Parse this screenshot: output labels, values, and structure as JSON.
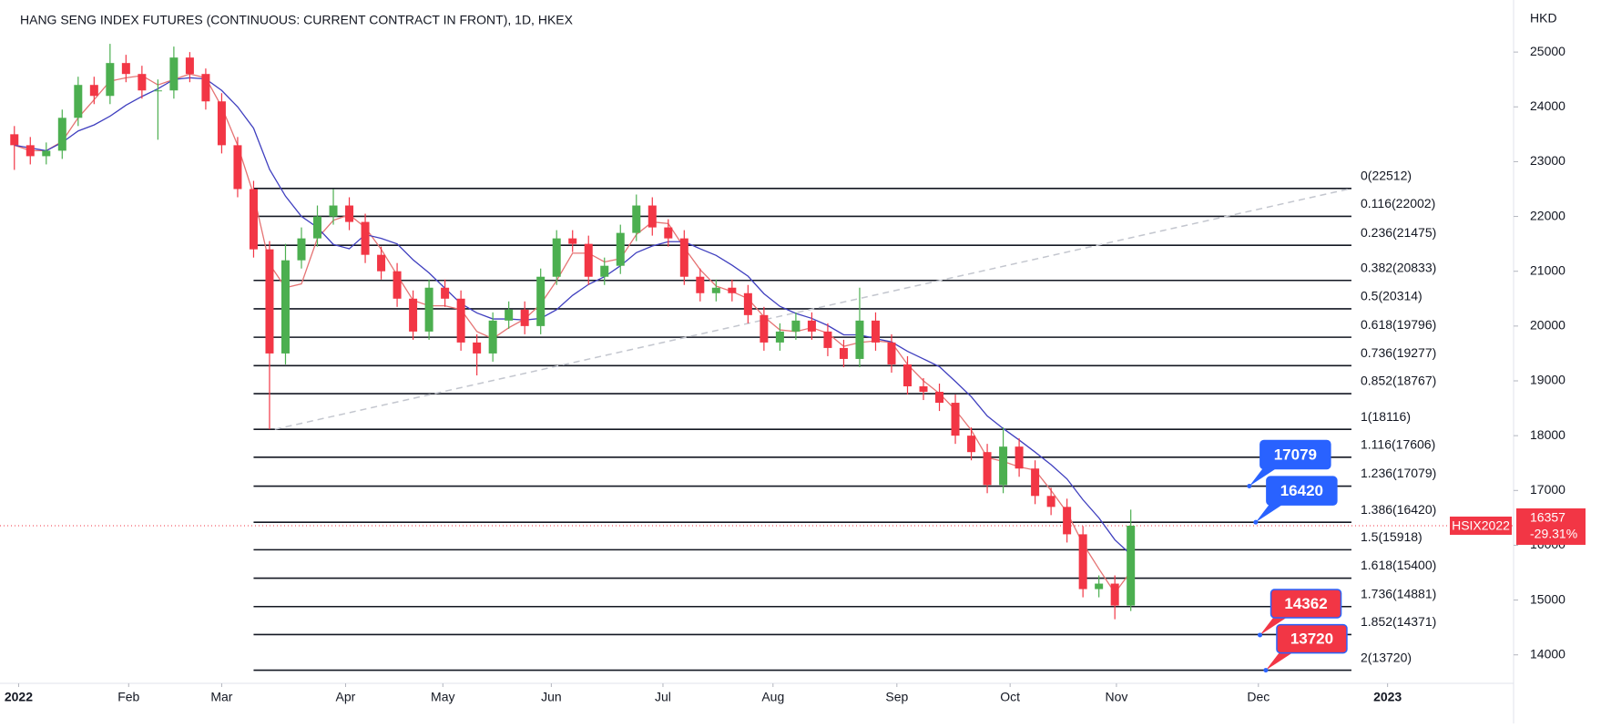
{
  "chart_data": {
    "type": "candlestick",
    "title": "HANG SENG INDEX FUTURES (CONTINUOUS: CURRENT CONTRACT IN FRONT), 1D, HKEX",
    "y_axis_label": "HKD",
    "up_color": "#4caf50",
    "down_color": "#f23645",
    "grid": false,
    "xlim": [
      -2.7,
      282
    ],
    "ylim": [
      13480,
      25950
    ],
    "yticks": [
      14000,
      15000,
      16000,
      17000,
      18000,
      19000,
      20000,
      21000,
      22000,
      23000,
      24000,
      25000
    ],
    "xticks": [
      {
        "value": 0.8,
        "label": "2022"
      },
      {
        "value": 21.5,
        "label": "Feb"
      },
      {
        "value": 39,
        "label": "Mar"
      },
      {
        "value": 62.3,
        "label": "Apr"
      },
      {
        "value": 80.6,
        "label": "May"
      },
      {
        "value": 101,
        "label": "Jun"
      },
      {
        "value": 122,
        "label": "Jul"
      },
      {
        "value": 142.7,
        "label": "Aug"
      },
      {
        "value": 166,
        "label": "Sep"
      },
      {
        "value": 187.3,
        "label": "Oct"
      },
      {
        "value": 207.3,
        "label": "Nov"
      },
      {
        "value": 234,
        "label": "Dec"
      },
      {
        "value": 258.3,
        "label": "2023"
      }
    ],
    "x": [
      0,
      3,
      6,
      9,
      12,
      15,
      18,
      21,
      24,
      27,
      30,
      33,
      36,
      39,
      42,
      45,
      48,
      51,
      54,
      57,
      60,
      63,
      66,
      69,
      72,
      75,
      78,
      81,
      84,
      87,
      90,
      93,
      96,
      99,
      102,
      105,
      108,
      111,
      114,
      117,
      120,
      123,
      126,
      129,
      132,
      135,
      138,
      141,
      144,
      147,
      150,
      153,
      156,
      159,
      162,
      165,
      168,
      171,
      174,
      177,
      180,
      183,
      186,
      189,
      192,
      195,
      198,
      201,
      204,
      207,
      210
    ],
    "open": [
      23500,
      23300,
      23100,
      23200,
      23800,
      24400,
      24200,
      24800,
      24600,
      24300,
      24300,
      24900,
      24600,
      24100,
      23300,
      22500,
      21400,
      19500,
      21200,
      21600,
      22000,
      22200,
      21900,
      21300,
      21000,
      20500,
      19900,
      20700,
      20500,
      19700,
      19500,
      20100,
      20300,
      20000,
      20900,
      21600,
      21500,
      20900,
      21100,
      21700,
      22200,
      21800,
      21600,
      20900,
      20600,
      20700,
      20600,
      20200,
      19700,
      19900,
      20100,
      19900,
      19600,
      19400,
      20100,
      19700,
      19300,
      18900,
      18800,
      18600,
      18000,
      17700,
      17100,
      17800,
      17400,
      16900,
      16700,
      16200,
      15200,
      15300,
      14900
    ],
    "high": [
      23650,
      23450,
      23350,
      23950,
      24550,
      24550,
      25150,
      24950,
      24750,
      24500,
      25100,
      25000,
      24700,
      24250,
      23450,
      22650,
      21550,
      21500,
      21800,
      22200,
      22500,
      22350,
      22050,
      21450,
      21150,
      20650,
      20850,
      20850,
      20650,
      19850,
      20250,
      20450,
      20450,
      21050,
      21750,
      21750,
      21650,
      21250,
      21850,
      22400,
      22350,
      21950,
      21750,
      21050,
      20850,
      20850,
      20750,
      20350,
      20050,
      20250,
      20250,
      20050,
      19750,
      20700,
      20250,
      19850,
      19450,
      19050,
      18950,
      18750,
      18150,
      17850,
      18150,
      17950,
      17550,
      17050,
      16850,
      16350,
      15450,
      15450,
      16650
    ],
    "low": [
      22850,
      22950,
      22950,
      23050,
      23650,
      24050,
      24050,
      24450,
      24150,
      23400,
      24150,
      24450,
      23950,
      23150,
      22350,
      21250,
      18116,
      19300,
      21050,
      21450,
      21850,
      21750,
      21150,
      20850,
      20350,
      19750,
      19750,
      20350,
      19550,
      19100,
      19350,
      19950,
      19850,
      19850,
      20750,
      21350,
      20750,
      20750,
      20950,
      21550,
      21650,
      21450,
      20750,
      20450,
      20450,
      20450,
      20050,
      19550,
      19550,
      19750,
      19750,
      19450,
      19250,
      19250,
      19550,
      19150,
      18750,
      18650,
      18450,
      17850,
      17550,
      16950,
      16950,
      17250,
      16750,
      16550,
      16050,
      15050,
      15050,
      14650,
      14800
    ],
    "close": [
      23300,
      23100,
      23200,
      23800,
      24400,
      24200,
      24800,
      24600,
      24300,
      24300,
      24900,
      24600,
      24100,
      23300,
      22500,
      21400,
      19500,
      21200,
      21600,
      22000,
      22200,
      21900,
      21300,
      21000,
      20500,
      19900,
      20700,
      20500,
      19700,
      19500,
      20100,
      20300,
      20000,
      20900,
      21600,
      21500,
      20900,
      21100,
      21700,
      22200,
      21800,
      21600,
      20900,
      20600,
      20700,
      20600,
      20200,
      19700,
      19900,
      20100,
      19900,
      19600,
      19400,
      20100,
      19700,
      19300,
      18900,
      18800,
      18600,
      18000,
      17700,
      17100,
      17800,
      17400,
      16900,
      16700,
      16200,
      15200,
      15300,
      14900,
      16357
    ],
    "lines": [
      {
        "color": "#e57373",
        "values": [
          23300,
          23200,
          23200,
          23370,
          23800,
          24130,
          24470,
          24530,
          24570,
          24400,
          24500,
          24600,
          24530,
          24000,
          23300,
          22400,
          21130,
          20700,
          20770,
          21600,
          21930,
          22030,
          21800,
          21400,
          20930,
          20470,
          20370,
          20370,
          20300,
          19900,
          19770,
          19970,
          20130,
          20400,
          20830,
          21330,
          21330,
          21170,
          21230,
          21670,
          21900,
          21870,
          21430,
          21030,
          20730,
          20630,
          20500,
          20170,
          19930,
          19900,
          19970,
          19870,
          19630,
          19700,
          19730,
          19700,
          19300,
          19000,
          18770,
          18470,
          18100,
          17600,
          17530,
          17430,
          17370,
          17000,
          16600,
          16030,
          15570,
          15130,
          15520
        ]
      },
      {
        "color": "#3f3fbf",
        "values": [
          23300,
          23250,
          23200,
          23350,
          23560,
          23670,
          23830,
          24030,
          24190,
          24330,
          24500,
          24530,
          24510,
          24300,
          24000,
          23610,
          22860,
          22370,
          22000,
          21800,
          21490,
          21410,
          21670,
          21600,
          21500,
          21210,
          20970,
          20690,
          20410,
          20240,
          20130,
          20130,
          20110,
          20140,
          20300,
          20560,
          20760,
          20900,
          21100,
          21340,
          21460,
          21540,
          21540,
          21410,
          21290,
          21110,
          20910,
          20590,
          20360,
          20230,
          20140,
          20010,
          19840,
          19840,
          19770,
          19710,
          19540,
          19400,
          19260,
          18990,
          18710,
          18360,
          18130,
          17920,
          17700,
          17470,
          17210,
          16830,
          16500,
          16100,
          15830
        ]
      }
    ],
    "fib_x": [
      45,
      251.5
    ],
    "fib_levels": [
      {
        "label": "0(22512)",
        "value": 22512
      },
      {
        "label": "0.116(22002)",
        "value": 22002
      },
      {
        "label": "0.236(21475)",
        "value": 21475
      },
      {
        "label": "0.382(20833)",
        "value": 20833
      },
      {
        "label": "0.5(20314)",
        "value": 20314
      },
      {
        "label": "0.618(19796)",
        "value": 19796
      },
      {
        "label": "0.736(19277)",
        "value": 19277
      },
      {
        "label": "0.852(18767)",
        "value": 18767
      },
      {
        "label": "1(18116)",
        "value": 18116
      },
      {
        "label": "1.116(17606)",
        "value": 17606
      },
      {
        "label": "1.236(17079)",
        "value": 17079
      },
      {
        "label": "1.386(16420)",
        "value": 16420
      },
      {
        "label": "1.5(15918)",
        "value": 15918
      },
      {
        "label": "1.618(15400)",
        "value": 15400
      },
      {
        "label": "1.736(14881)",
        "value": 14881
      },
      {
        "label": "1.852(14371)",
        "value": 14371
      },
      {
        "label": "2(13720)",
        "value": 13720
      }
    ],
    "trend_line": {
      "x": [
        49,
        251.5
      ],
      "y": [
        18116,
        22512
      ]
    },
    "annotations": [
      {
        "value": 17079,
        "x": 232.3,
        "color": "#2962ff"
      },
      {
        "value": 16420,
        "x": 233.5,
        "color": "#2962ff"
      },
      {
        "value": 14362,
        "x": 234.3,
        "color": "#f23645"
      },
      {
        "value": 13720,
        "x": 235.4,
        "color": "#f23645"
      }
    ],
    "last_price": {
      "value": 16357,
      "label": "HSIX2022",
      "change": "-29.31%",
      "color": "#f23645"
    }
  }
}
